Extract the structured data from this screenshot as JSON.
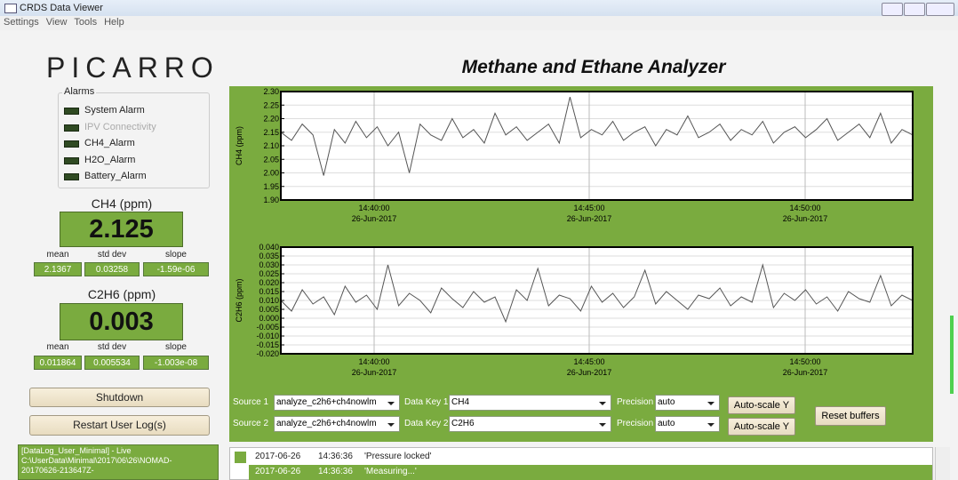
{
  "window": {
    "title": "CRDS Data Viewer"
  },
  "menu": [
    "Settings",
    "View",
    "Tools",
    "Help"
  ],
  "logo": "PICARRO",
  "alarms": {
    "title": "Alarms",
    "items": [
      "System Alarm",
      "IPV Connectivity",
      "CH4_Alarm",
      "H2O_Alarm",
      "Battery_Alarm"
    ]
  },
  "readouts": [
    {
      "label": "CH4 (ppm)",
      "value": "2.125",
      "stat_names": [
        "mean",
        "std dev",
        "slope"
      ],
      "stat_values": [
        "2.1367",
        "0.03258",
        "-1.59e-06"
      ]
    },
    {
      "label": "C2H6 (ppm)",
      "value": "0.003",
      "stat_names": [
        "mean",
        "std dev",
        "slope"
      ],
      "stat_values": [
        "0.011864",
        "0.005534",
        "-1.003e-08"
      ]
    }
  ],
  "buttons": [
    "Shutdown",
    "Restart User Log(s)"
  ],
  "log_text": [
    "[DataLog_User_Minimal] - Live",
    "C:\\UserData\\Minimal\\2017\\06\\26\\NOMAD-",
    "20170626-213647Z-"
  ],
  "title": "Methane and Ethane Analyzer",
  "charts": [
    {
      "type": "line",
      "ylabel": "CH4 (ppm)",
      "ylim": [
        1.9,
        2.3
      ],
      "color": "#555555",
      "yticks": [
        {
          "value": 2.3,
          "label": "2.30"
        },
        2.25,
        {
          "value": 2.2,
          "label": "2.20"
        },
        2.15,
        {
          "value": 2.1,
          "label": "2.10"
        },
        2.05,
        {
          "value": 2,
          "label": "2.00"
        },
        1.95,
        {
          "value": 1.9,
          "label": "1.90"
        }
      ],
      "xticks": [
        {
          "time": "14:40:00",
          "date": "26-Jun-2017"
        },
        {
          "time": "14:45:00",
          "date": "26-Jun-2017"
        },
        {
          "time": "14:50:00",
          "date": "26-Jun-2017"
        }
      ],
      "values": [
        2.15,
        2.12,
        2.18,
        2.14,
        1.99,
        2.16,
        2.11,
        2.19,
        2.13,
        2.17,
        2.1,
        2.15,
        2.0,
        2.18,
        2.14,
        2.12,
        2.2,
        2.13,
        2.16,
        2.11,
        2.22,
        2.14,
        2.17,
        2.12,
        2.15,
        2.18,
        2.11,
        2.28,
        2.13,
        2.16,
        2.14,
        2.19,
        2.12,
        2.15,
        2.17,
        2.1,
        2.16,
        2.14,
        2.21,
        2.13,
        2.15,
        2.18,
        2.12,
        2.16,
        2.14,
        2.19,
        2.11,
        2.15,
        2.17,
        2.13,
        2.16,
        2.2,
        2.12,
        2.15,
        2.18,
        2.13,
        2.22,
        2.11,
        2.16,
        2.14
      ]
    },
    {
      "type": "line",
      "ylabel": "C2H6 (ppm)",
      "ylim": [
        -0.02,
        0.04
      ],
      "color": "#555555",
      "yticks": [
        {
          "value": 0.04,
          "label": "0.040"
        },
        0.035,
        {
          "value": 0.03,
          "label": "0.030"
        },
        0.025,
        {
          "value": 0.02,
          "label": "0.020"
        },
        0.015,
        {
          "value": 0.01,
          "label": "0.010"
        },
        0.005,
        {
          "value": 0,
          "label": "0.000"
        },
        -0.005,
        {
          "value": -0.01,
          "label": "-0.010"
        },
        -0.015,
        {
          "value": -0.02,
          "label": "-0.020"
        }
      ],
      "xticks": [
        {
          "time": "14:40:00",
          "date": "26-Jun-2017"
        },
        {
          "time": "14:45:00",
          "date": "26-Jun-2017"
        },
        {
          "time": "14:50:00",
          "date": "26-Jun-2017"
        }
      ],
      "values": [
        0.01,
        0.004,
        0.016,
        0.008,
        0.012,
        0.002,
        0.018,
        0.009,
        0.013,
        0.005,
        0.03,
        0.007,
        0.014,
        0.01,
        0.003,
        0.017,
        0.011,
        0.006,
        0.015,
        0.009,
        0.012,
        -0.002,
        0.016,
        0.01,
        0.028,
        0.007,
        0.013,
        0.011,
        0.004,
        0.018,
        0.009,
        0.014,
        0.006,
        0.012,
        0.027,
        0.008,
        0.015,
        0.01,
        0.005,
        0.013,
        0.011,
        0.017,
        0.007,
        0.012,
        0.009,
        0.03,
        0.006,
        0.014,
        0.01,
        0.016,
        0.008,
        0.012,
        0.004,
        0.015,
        0.011,
        0.009,
        0.024,
        0.007,
        0.013,
        0.01
      ]
    }
  ],
  "controls": {
    "rows": [
      {
        "source_label": "Source 1",
        "source": "analyze_c2h6+ch4nowlm",
        "key_label": "Data Key 1",
        "key": "CH4",
        "precision_label": "Precision",
        "precision": "auto",
        "button": "Auto-scale Y"
      },
      {
        "source_label": "Source 2",
        "source": "analyze_c2h6+ch4nowlm",
        "key_label": "Data Key 2",
        "key": "C2H6",
        "precision_label": "Precision",
        "precision": "auto",
        "button": "Auto-scale Y"
      }
    ],
    "reset": "Reset buffers"
  },
  "events": [
    [
      "2017-06-26",
      "14:36:36",
      "'Pressure locked'"
    ],
    [
      "2017-06-26",
      "14:36:36",
      "'Measuring...'"
    ]
  ]
}
